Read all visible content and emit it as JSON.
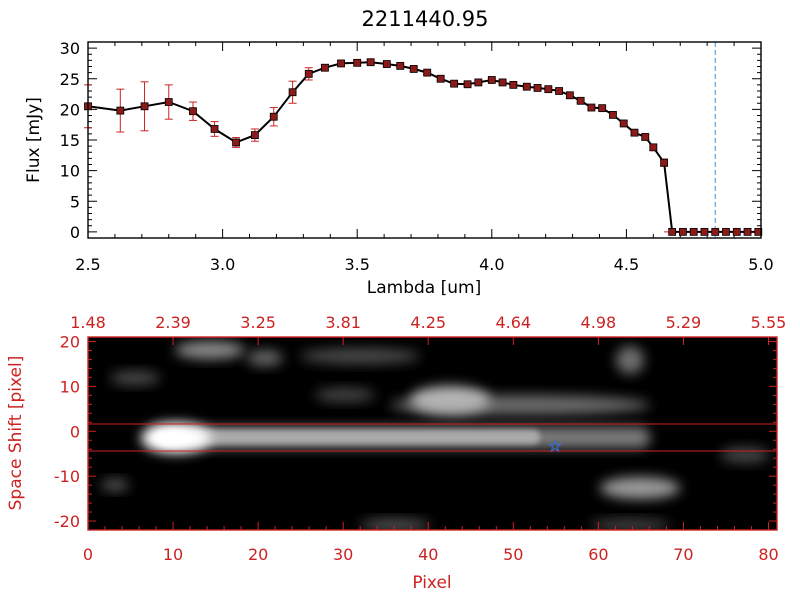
{
  "colors": {
    "black": "#000000",
    "red": "#cc2222",
    "dashed_line": "#3b8fe0",
    "marker": "#8b1a1a",
    "star": "#3a6fd8"
  },
  "chart_data": [
    {
      "type": "line",
      "title": "2211440.95",
      "xlabel": "Lambda [um]",
      "ylabel": "Flux [mJy]",
      "xlim": [
        2.5,
        5.0
      ],
      "ylim": [
        -1,
        31
      ],
      "xticks": [
        "2.5",
        "3.0",
        "3.5",
        "4.0",
        "4.5",
        "5.0"
      ],
      "yticks": [
        "0",
        "5",
        "10",
        "15",
        "20",
        "25",
        "30"
      ],
      "x": [
        2.5,
        2.62,
        2.71,
        2.8,
        2.89,
        2.97,
        3.05,
        3.12,
        3.19,
        3.26,
        3.32,
        3.38,
        3.44,
        3.5,
        3.55,
        3.61,
        3.66,
        3.71,
        3.76,
        3.81,
        3.86,
        3.91,
        3.95,
        4.0,
        4.04,
        4.08,
        4.13,
        4.17,
        4.21,
        4.25,
        4.29,
        4.33,
        4.37,
        4.41,
        4.45,
        4.49,
        4.53,
        4.57,
        4.6,
        4.64,
        4.67,
        4.71,
        4.75,
        4.79,
        4.83,
        4.87,
        4.91,
        4.95,
        4.99
      ],
      "y": [
        20.5,
        19.8,
        20.5,
        21.2,
        19.7,
        16.8,
        14.6,
        15.8,
        18.8,
        22.8,
        25.8,
        26.8,
        27.5,
        27.6,
        27.7,
        27.4,
        27.1,
        26.6,
        26.0,
        25.0,
        24.2,
        24.1,
        24.4,
        24.8,
        24.4,
        24.0,
        23.7,
        23.5,
        23.3,
        23.0,
        22.3,
        21.4,
        20.3,
        20.2,
        19.1,
        17.7,
        16.2,
        15.5,
        13.8,
        11.3,
        0,
        0,
        0,
        0,
        0,
        0,
        0,
        0,
        0
      ],
      "yerr": [
        3.5,
        3.5,
        4.0,
        2.8,
        1.5,
        1.2,
        0.8,
        1.0,
        1.5,
        1.8,
        1.0,
        0.5,
        0.4,
        0.4,
        0.4,
        0.4,
        0.3,
        0.3,
        0.3,
        0.3,
        0.3,
        0.3,
        0.3,
        0.3,
        0.3,
        0.3,
        0.3,
        0.3,
        0.3,
        0.3,
        0.3,
        0.3,
        0.3,
        0.3,
        0.3,
        0.3,
        0.4,
        0.4,
        0.5,
        0.6,
        0,
        0,
        0,
        0,
        0,
        0,
        0,
        0,
        0
      ],
      "vline_x": 4.83
    },
    {
      "type": "heatmap",
      "xlabel": "Pixel",
      "ylabel": "Space Shift [pixel]",
      "xlim": [
        0,
        81
      ],
      "ylim": [
        -22,
        21
      ],
      "xticks": [
        "0",
        "10",
        "20",
        "30",
        "40",
        "50",
        "60",
        "70",
        "80"
      ],
      "yticks": [
        "-20",
        "-10",
        "0",
        "10",
        "20"
      ],
      "top_axis_labels": [
        "1.48",
        "2.39",
        "3.25",
        "3.81",
        "4.25",
        "4.64",
        "4.98",
        "5.29",
        "5.55"
      ],
      "extraction_window": [
        -3,
        3
      ],
      "source_marker": {
        "x": 55,
        "y": -1.5
      }
    }
  ]
}
